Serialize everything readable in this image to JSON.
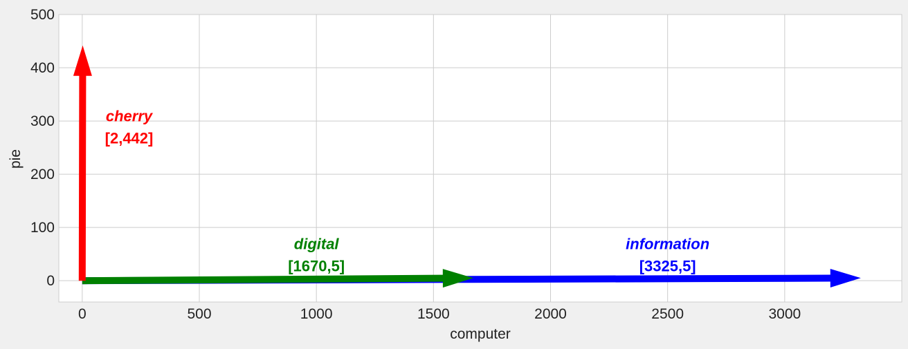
{
  "chart_data": {
    "type": "vector",
    "xlabel": "computer",
    "ylabel": "pie",
    "xlim": [
      -100,
      3500
    ],
    "ylim": [
      -40,
      500
    ],
    "xticks": [
      0,
      500,
      1000,
      1500,
      2000,
      2500,
      3000
    ],
    "yticks": [
      0,
      100,
      200,
      300,
      400,
      500
    ],
    "grid": true,
    "vectors": [
      {
        "name": "information",
        "coord_label": "[3325,5]",
        "x": 3325,
        "y": 5,
        "color": "#0000ff",
        "label_x": 2500,
        "label_y": 70
      },
      {
        "name": "digital",
        "coord_label": "[1670,5]",
        "x": 1670,
        "y": 5,
        "color": "#008000",
        "label_x": 1000,
        "label_y": 70
      },
      {
        "name": "cherry",
        "coord_label": "[2,442]",
        "x": 2,
        "y": 442,
        "color": "#ff0000",
        "label_x": 200,
        "label_y": 310
      }
    ]
  }
}
